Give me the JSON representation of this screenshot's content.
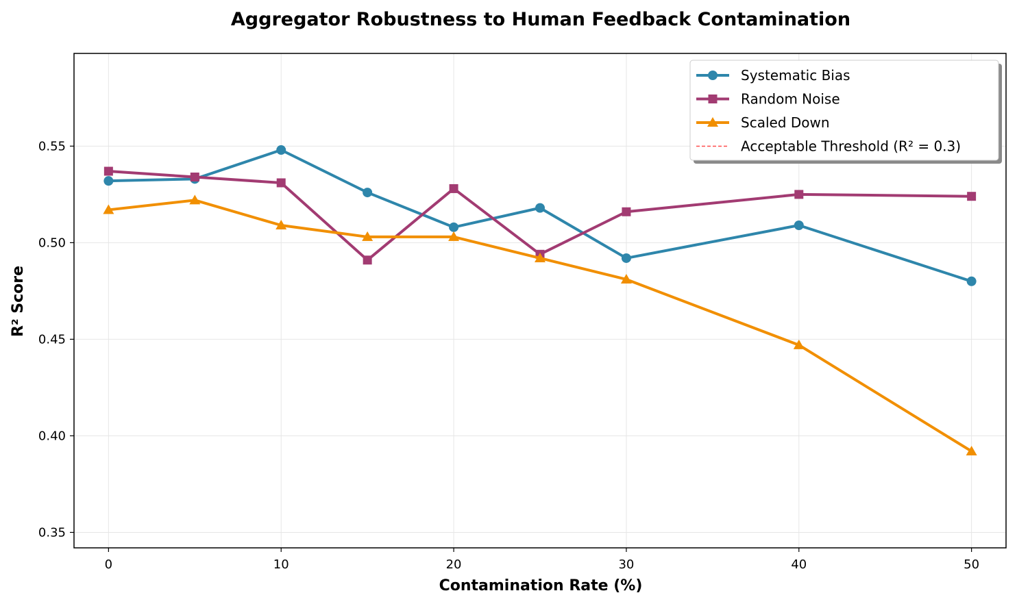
{
  "chart_data": {
    "type": "line",
    "title": "Aggregator Robustness to Human Feedback Contamination",
    "xlabel": "Contamination Rate (%)",
    "ylabel": "R² Score",
    "x": [
      0,
      5,
      10,
      15,
      20,
      25,
      30,
      40,
      50
    ],
    "xticks": [
      0,
      10,
      20,
      30,
      40,
      50
    ],
    "yticks": [
      0.35,
      0.4,
      0.45,
      0.5,
      0.55
    ],
    "xlim": [
      -2,
      52
    ],
    "ylim": [
      0.342,
      0.598
    ],
    "grid": true,
    "legend_position": "top-right",
    "series": [
      {
        "name": "Systematic Bias",
        "color": "#2e86ab",
        "marker": "circle",
        "values": [
          0.532,
          0.533,
          0.548,
          0.526,
          0.508,
          0.518,
          0.492,
          0.509,
          0.48
        ]
      },
      {
        "name": "Random Noise",
        "color": "#a23b72",
        "marker": "square",
        "values": [
          0.537,
          0.534,
          0.531,
          0.491,
          0.528,
          0.494,
          0.516,
          0.525,
          0.524
        ]
      },
      {
        "name": "Scaled Down",
        "color": "#f18f01",
        "marker": "triangle",
        "values": [
          0.517,
          0.522,
          0.509,
          0.503,
          0.503,
          0.492,
          0.481,
          0.447,
          0.392
        ]
      }
    ],
    "threshold": {
      "name": "Acceptable Threshold (R² = 0.3)",
      "value": 0.3,
      "color": "#ff4d4d",
      "style": "dashed"
    }
  }
}
